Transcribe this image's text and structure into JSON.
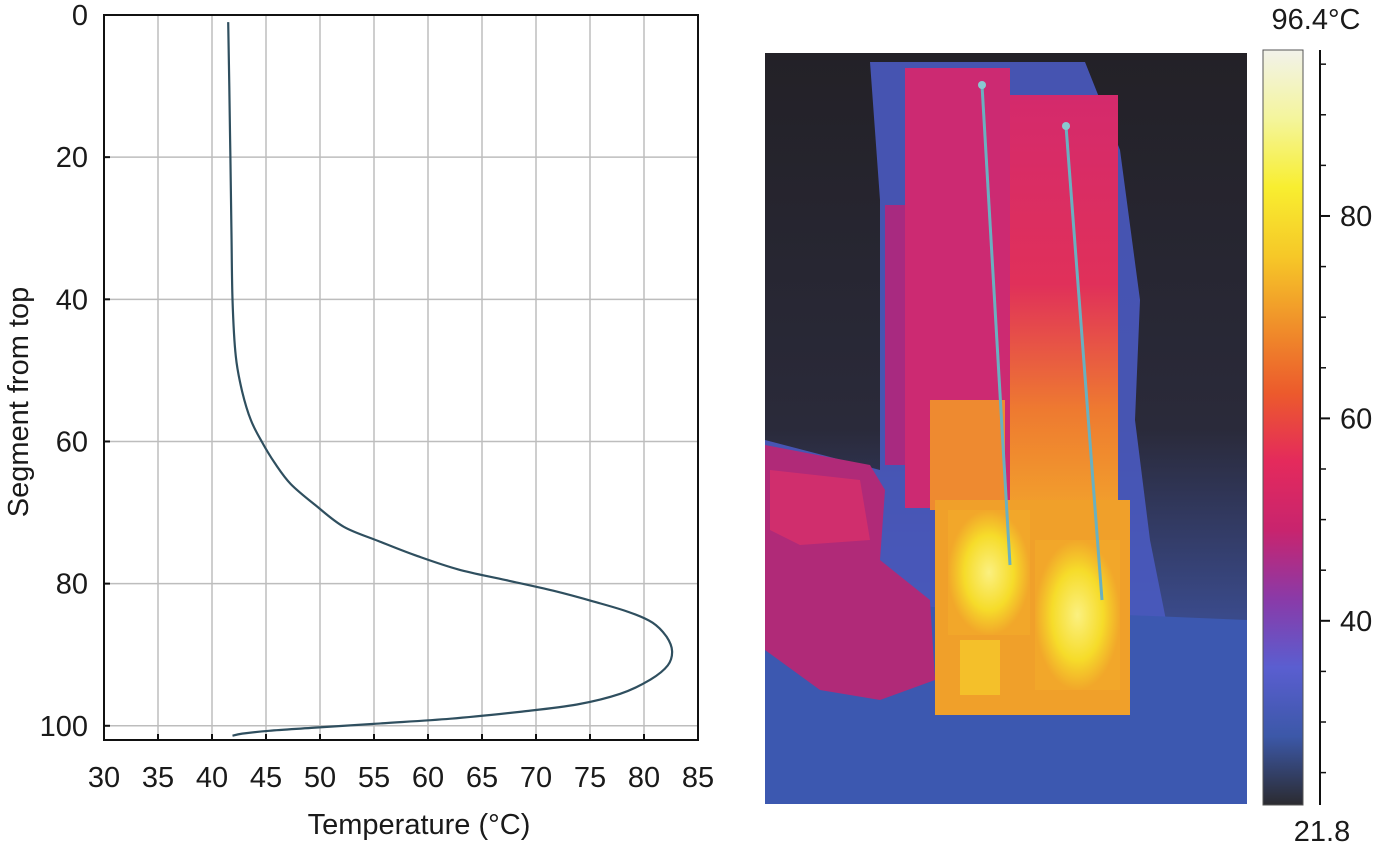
{
  "chart_data": [
    {
      "type": "line",
      "xlabel": "Temperature (°C)",
      "ylabel": "Segment from top",
      "xlim": [
        30,
        85
      ],
      "ylim": [
        0,
        102
      ],
      "y_inverted": true,
      "grid": true,
      "xticks": [
        30,
        35,
        40,
        45,
        50,
        55,
        60,
        65,
        70,
        75,
        80,
        85
      ],
      "yticks": [
        0,
        20,
        40,
        60,
        80,
        100
      ],
      "series": [
        {
          "color": "#2f4f5f",
          "points": [
            [
              41.5,
              1
            ],
            [
              41.6,
              10
            ],
            [
              41.7,
              20
            ],
            [
              41.8,
              30
            ],
            [
              41.9,
              40
            ],
            [
              42.2,
              48
            ],
            [
              42.8,
              53
            ],
            [
              43.6,
              57
            ],
            [
              44.6,
              60
            ],
            [
              45.8,
              63
            ],
            [
              47.3,
              66
            ],
            [
              49.6,
              69
            ],
            [
              52.2,
              72
            ],
            [
              55.4,
              74
            ],
            [
              58.8,
              76
            ],
            [
              62.8,
              78
            ],
            [
              67.2,
              79.5
            ],
            [
              71.6,
              81
            ],
            [
              75.3,
              82.5
            ],
            [
              78.6,
              84
            ],
            [
              80.8,
              85.5
            ],
            [
              82.1,
              87.5
            ],
            [
              82.6,
              89.5
            ],
            [
              82.2,
              91.5
            ],
            [
              80.6,
              93.5
            ],
            [
              77.8,
              95.5
            ],
            [
              73.8,
              97
            ],
            [
              68.7,
              98
            ],
            [
              62.1,
              99
            ],
            [
              55.2,
              99.7
            ],
            [
              49.2,
              100.3
            ],
            [
              45.3,
              100.7
            ],
            [
              42.8,
              101.1
            ],
            [
              41.9,
              101.4
            ]
          ]
        }
      ]
    },
    {
      "type": "heatmap",
      "colorbar": {
        "max_label": "96.4°C",
        "min_label": "21.8",
        "range": [
          21.8,
          96.4
        ],
        "ticks": [
          40,
          60,
          80
        ],
        "colors": [
          "#2b2b30",
          "#3c58a8",
          "#5a5ed0",
          "#8a3aa8",
          "#c8246e",
          "#e42a5c",
          "#ec5a2c",
          "#f0902a",
          "#f6c828",
          "#f8ee30",
          "#f4f59c",
          "#f2f2ea"
        ]
      }
    }
  ]
}
